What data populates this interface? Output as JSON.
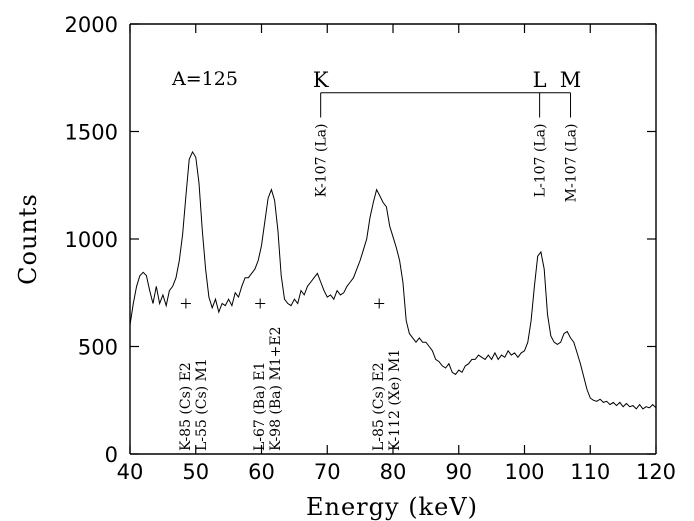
{
  "chart_data": {
    "type": "line",
    "xlabel": "Energy (keV)",
    "ylabel": "Counts",
    "xlim": [
      40,
      120
    ],
    "ylim": [
      0,
      2000
    ],
    "xticks": [
      "40",
      "50",
      "60",
      "70",
      "80",
      "90",
      "100",
      "110",
      "120"
    ],
    "yticks": [
      "0",
      "500",
      "1000",
      "1500",
      "2000"
    ],
    "inset_label": "A=125",
    "series": [
      {
        "points": [
          [
            40.0,
            600
          ],
          [
            40.5,
            700
          ],
          [
            41.0,
            780
          ],
          [
            41.5,
            830
          ],
          [
            42.0,
            845
          ],
          [
            42.5,
            830
          ],
          [
            43.0,
            760
          ],
          [
            43.5,
            700
          ],
          [
            44.0,
            780
          ],
          [
            44.5,
            700
          ],
          [
            45.0,
            740
          ],
          [
            45.5,
            690
          ],
          [
            46.0,
            760
          ],
          [
            46.5,
            780
          ],
          [
            47.0,
            820
          ],
          [
            47.5,
            900
          ],
          [
            48.0,
            1020
          ],
          [
            48.5,
            1200
          ],
          [
            49.0,
            1370
          ],
          [
            49.5,
            1405
          ],
          [
            50.0,
            1380
          ],
          [
            50.5,
            1260
          ],
          [
            51.0,
            1040
          ],
          [
            51.5,
            860
          ],
          [
            52.0,
            730
          ],
          [
            52.5,
            680
          ],
          [
            53.0,
            720
          ],
          [
            53.5,
            660
          ],
          [
            54.0,
            700
          ],
          [
            54.5,
            690
          ],
          [
            55.0,
            720
          ],
          [
            55.5,
            690
          ],
          [
            56.0,
            750
          ],
          [
            56.5,
            730
          ],
          [
            57.0,
            780
          ],
          [
            57.5,
            820
          ],
          [
            58.0,
            820
          ],
          [
            58.5,
            840
          ],
          [
            59.0,
            860
          ],
          [
            59.5,
            900
          ],
          [
            60.0,
            970
          ],
          [
            60.5,
            1080
          ],
          [
            61.0,
            1190
          ],
          [
            61.5,
            1230
          ],
          [
            62.0,
            1180
          ],
          [
            62.5,
            1040
          ],
          [
            63.0,
            830
          ],
          [
            63.5,
            720
          ],
          [
            64.0,
            700
          ],
          [
            64.5,
            690
          ],
          [
            65.0,
            720
          ],
          [
            65.5,
            700
          ],
          [
            66.0,
            760
          ],
          [
            66.5,
            740
          ],
          [
            67.0,
            780
          ],
          [
            67.5,
            800
          ],
          [
            68.0,
            820
          ],
          [
            68.5,
            840
          ],
          [
            69.0,
            800
          ],
          [
            69.5,
            760
          ],
          [
            70.0,
            730
          ],
          [
            70.5,
            740
          ],
          [
            71.0,
            720
          ],
          [
            71.5,
            760
          ],
          [
            72.0,
            740
          ],
          [
            72.5,
            750
          ],
          [
            73.0,
            780
          ],
          [
            73.5,
            800
          ],
          [
            74.0,
            820
          ],
          [
            74.5,
            860
          ],
          [
            75.0,
            900
          ],
          [
            75.5,
            950
          ],
          [
            76.0,
            1000
          ],
          [
            76.5,
            1100
          ],
          [
            77.0,
            1170
          ],
          [
            77.5,
            1230
          ],
          [
            78.0,
            1200
          ],
          [
            78.5,
            1170
          ],
          [
            79.0,
            1150
          ],
          [
            79.5,
            1060
          ],
          [
            80.0,
            1010
          ],
          [
            80.5,
            960
          ],
          [
            81.0,
            900
          ],
          [
            81.5,
            800
          ],
          [
            82.0,
            620
          ],
          [
            82.5,
            560
          ],
          [
            83.0,
            540
          ],
          [
            83.5,
            520
          ],
          [
            84.0,
            540
          ],
          [
            84.5,
            520
          ],
          [
            85.0,
            520
          ],
          [
            85.5,
            500
          ],
          [
            86.0,
            480
          ],
          [
            86.5,
            440
          ],
          [
            87.0,
            430
          ],
          [
            87.5,
            410
          ],
          [
            88.0,
            400
          ],
          [
            88.5,
            420
          ],
          [
            89.0,
            380
          ],
          [
            89.5,
            370
          ],
          [
            90.0,
            390
          ],
          [
            90.5,
            380
          ],
          [
            91.0,
            410
          ],
          [
            91.5,
            420
          ],
          [
            92.0,
            440
          ],
          [
            92.5,
            440
          ],
          [
            93.0,
            460
          ],
          [
            93.5,
            450
          ],
          [
            94.0,
            440
          ],
          [
            94.5,
            460
          ],
          [
            95.0,
            440
          ],
          [
            95.5,
            470
          ],
          [
            96.0,
            440
          ],
          [
            96.5,
            460
          ],
          [
            97.0,
            450
          ],
          [
            97.5,
            480
          ],
          [
            98.0,
            460
          ],
          [
            98.5,
            470
          ],
          [
            99.0,
            450
          ],
          [
            99.5,
            470
          ],
          [
            100.0,
            480
          ],
          [
            100.5,
            520
          ],
          [
            101.0,
            620
          ],
          [
            101.5,
            780
          ],
          [
            102.0,
            920
          ],
          [
            102.5,
            940
          ],
          [
            103.0,
            860
          ],
          [
            103.5,
            650
          ],
          [
            104.0,
            550
          ],
          [
            104.5,
            520
          ],
          [
            105.0,
            510
          ],
          [
            105.5,
            520
          ],
          [
            106.0,
            560
          ],
          [
            106.5,
            570
          ],
          [
            107.0,
            540
          ],
          [
            107.5,
            520
          ],
          [
            108.0,
            470
          ],
          [
            108.5,
            420
          ],
          [
            109.0,
            360
          ],
          [
            109.5,
            300
          ],
          [
            110.0,
            260
          ],
          [
            110.5,
            250
          ],
          [
            111.0,
            245
          ],
          [
            111.5,
            255
          ],
          [
            112.0,
            240
          ],
          [
            112.5,
            245
          ],
          [
            113.0,
            230
          ],
          [
            113.5,
            240
          ],
          [
            114.0,
            225
          ],
          [
            114.5,
            240
          ],
          [
            115.0,
            220
          ],
          [
            115.5,
            235
          ],
          [
            116.0,
            220
          ],
          [
            116.5,
            225
          ],
          [
            117.0,
            210
          ],
          [
            117.5,
            230
          ],
          [
            118.0,
            210
          ],
          [
            118.5,
            220
          ],
          [
            119.0,
            215
          ],
          [
            119.5,
            230
          ],
          [
            120.0,
            215
          ]
        ]
      }
    ],
    "peak_annotations": [
      {
        "x": 48.5,
        "marker_y": 700,
        "lines": [
          "K-85 (Cs) E2",
          "L-55 (Cs) M1"
        ]
      },
      {
        "x": 59.8,
        "marker_y": 700,
        "lines": [
          "L-67 (Ba) E1",
          "K-98 (Ba) M1+E2"
        ]
      },
      {
        "x": 77.9,
        "marker_y": 700,
        "lines": [
          "L-85 (Cs) E2",
          "K-112 (Xe) M1"
        ]
      }
    ],
    "shell_bracket": {
      "labels": [
        "K",
        "L",
        "M"
      ],
      "x": [
        69.0,
        102.3,
        107.0
      ],
      "y": 1680,
      "drop_to": 1565,
      "lines": [
        "K-107 (La)",
        "L-107 (La)",
        "M-107 (La)"
      ]
    }
  }
}
